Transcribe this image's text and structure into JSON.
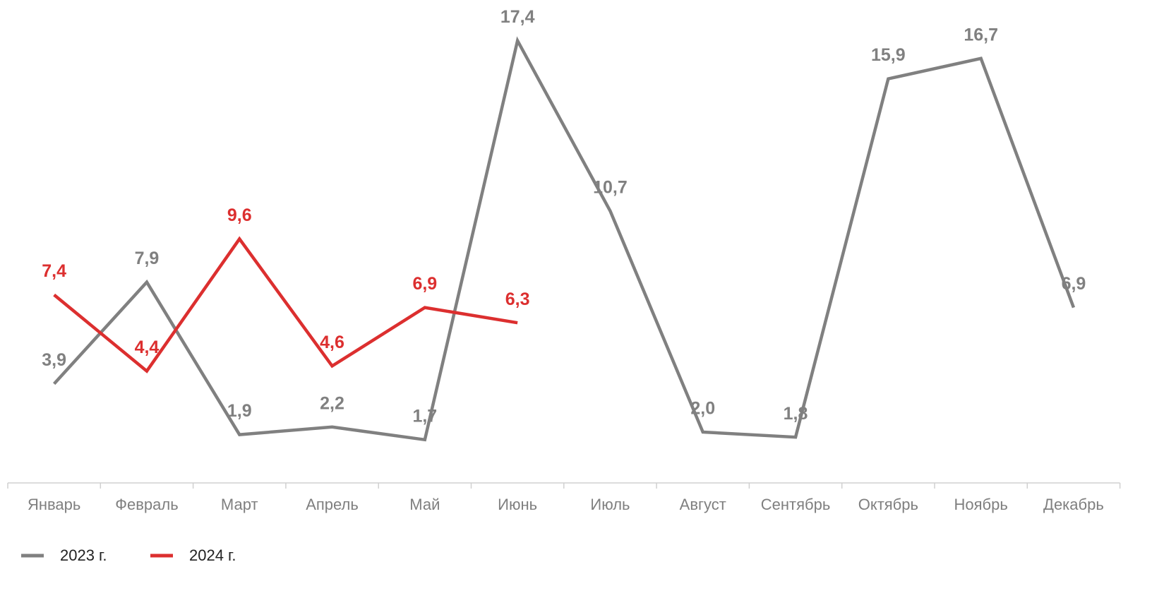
{
  "chart_data": {
    "type": "line",
    "categories": [
      "Январь",
      "Февраль",
      "Март",
      "Апрель",
      "Май",
      "Июнь",
      "Июль",
      "Август",
      "Сентябрь",
      "Октябрь",
      "Ноябрь",
      "Декабрь"
    ],
    "series": [
      {
        "name": "2023 г.",
        "color": "#808080",
        "values": [
          3.9,
          7.9,
          1.9,
          2.2,
          1.7,
          17.4,
          10.7,
          2.0,
          1.8,
          15.9,
          16.7,
          6.9
        ],
        "value_labels": [
          "3,9",
          "7,9",
          "1,9",
          "2,2",
          "1,7",
          "17,4",
          "10,7",
          "2,0",
          "1,8",
          "15,9",
          "16,7",
          "6,9"
        ]
      },
      {
        "name": "2024 г.",
        "color": "#dc2f2f",
        "values": [
          7.4,
          4.4,
          9.6,
          4.6,
          6.9,
          6.3,
          null,
          null,
          null,
          null,
          null,
          null
        ],
        "value_labels": [
          "7,4",
          "4,4",
          "9,6",
          "4,6",
          "6,9",
          "6,3",
          null,
          null,
          null,
          null,
          null,
          null
        ]
      }
    ],
    "ylim": [
      0,
      18
    ]
  }
}
